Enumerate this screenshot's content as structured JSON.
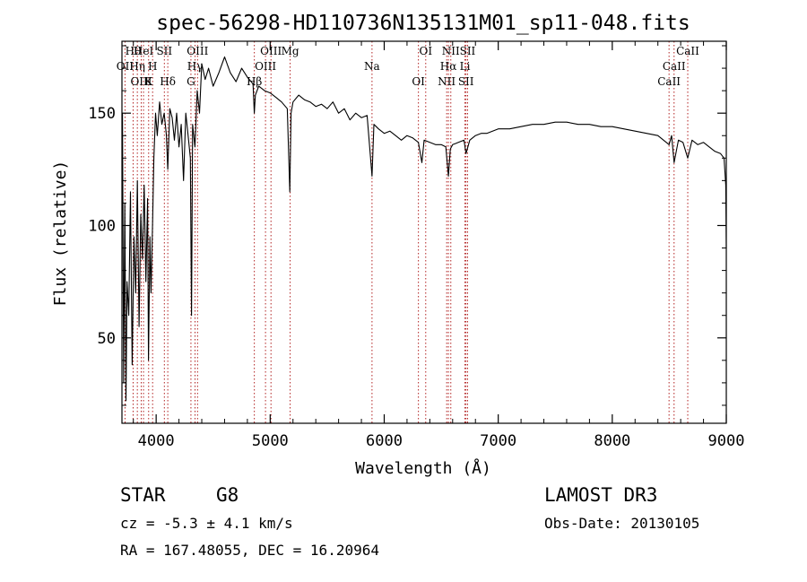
{
  "chart_data": {
    "type": "line",
    "title": "spec-56298-HD110736N135131M01_sp11-048.fits",
    "xlabel": "Wavelength (Å)",
    "ylabel": "Flux (relative)",
    "xlim": [
      3700,
      9000
    ],
    "ylim": [
      12,
      182
    ],
    "x_ticks": [
      4000,
      5000,
      6000,
      7000,
      8000,
      9000
    ],
    "y_ticks": [
      50,
      100,
      150
    ],
    "grid": false,
    "line_color": "#000000",
    "marker_color": "#b22222",
    "series": [
      {
        "x": [
          3705,
          3715,
          3725,
          3735,
          3745,
          3760,
          3775,
          3790,
          3805,
          3820,
          3835,
          3850,
          3865,
          3880,
          3895,
          3910,
          3925,
          3933,
          3945,
          3955,
          3968,
          3980,
          3995,
          4010,
          4030,
          4050,
          4070,
          4090,
          4102,
          4120,
          4140,
          4160,
          4180,
          4200,
          4220,
          4240,
          4260,
          4280,
          4300,
          4310,
          4320,
          4340,
          4360,
          4380,
          4400,
          4430,
          4460,
          4500,
          4550,
          4600,
          4650,
          4700,
          4750,
          4800,
          4850,
          4861,
          4870,
          4900,
          4950,
          5000,
          5050,
          5100,
          5150,
          5172,
          5183,
          5200,
          5250,
          5300,
          5350,
          5400,
          5450,
          5500,
          5550,
          5600,
          5650,
          5700,
          5750,
          5800,
          5850,
          5893,
          5910,
          5950,
          6000,
          6050,
          6100,
          6150,
          6200,
          6250,
          6300,
          6330,
          6350,
          6400,
          6450,
          6500,
          6540,
          6563,
          6580,
          6600,
          6650,
          6700,
          6717,
          6750,
          6800,
          6850,
          6900,
          6950,
          7000,
          7100,
          7200,
          7300,
          7400,
          7500,
          7600,
          7700,
          7800,
          7900,
          8000,
          8100,
          8200,
          8300,
          8400,
          8498,
          8520,
          8542,
          8580,
          8620,
          8662,
          8700,
          8750,
          8800,
          8850,
          8900,
          8950,
          8980,
          8995,
          9000
        ],
        "values": [
          150,
          30,
          110,
          22,
          75,
          60,
          115,
          38,
          95,
          70,
          120,
          55,
          105,
          85,
          118,
          75,
          112,
          40,
          95,
          70,
          100,
          130,
          150,
          140,
          155,
          145,
          150,
          140,
          125,
          152,
          148,
          138,
          150,
          135,
          145,
          120,
          150,
          140,
          130,
          60,
          145,
          135,
          160,
          150,
          172,
          165,
          170,
          162,
          168,
          175,
          168,
          164,
          170,
          166,
          163,
          150,
          158,
          162,
          160,
          159,
          157,
          155,
          152,
          115,
          150,
          155,
          158,
          156,
          155,
          153,
          154,
          152,
          155,
          150,
          152,
          147,
          150,
          148,
          149,
          122,
          145,
          143,
          141,
          142,
          140,
          138,
          140,
          139,
          137,
          128,
          138,
          137,
          136,
          136,
          135,
          122,
          134,
          136,
          137,
          138,
          132,
          138,
          140,
          141,
          141,
          142,
          143,
          143,
          144,
          145,
          145,
          146,
          146,
          145,
          145,
          144,
          144,
          143,
          142,
          141,
          140,
          136,
          140,
          128,
          138,
          137,
          130,
          138,
          136,
          137,
          135,
          133,
          132,
          130,
          118,
          90
        ]
      }
    ],
    "spectral_lines": [
      {
        "label": "Hθ",
        "wavelength": 3798
      },
      {
        "label": "OII",
        "wavelength": 3727
      },
      {
        "label": "OIII",
        "wavelength": 3869
      },
      {
        "label": "HeI",
        "wavelength": 3889
      },
      {
        "label": "Hη",
        "wavelength": 3835
      },
      {
        "label": "K",
        "wavelength": 3934
      },
      {
        "label": "SII",
        "wavelength": 4072
      },
      {
        "label": "H",
        "wavelength": 3969
      },
      {
        "label": "Hδ",
        "wavelength": 4102
      },
      {
        "label": "OIII",
        "wavelength": 4363
      },
      {
        "label": "Hγ",
        "wavelength": 4341
      },
      {
        "label": "G",
        "wavelength": 4305
      },
      {
        "label": "OIII",
        "wavelength": 5007
      },
      {
        "label": "OIII",
        "wavelength": 4959
      },
      {
        "label": "Hβ",
        "wavelength": 4861
      },
      {
        "label": "Mg",
        "wavelength": 5175
      },
      {
        "label": "Na",
        "wavelength": 5893
      },
      {
        "label": "OI",
        "wavelength": 6300
      },
      {
        "label": "OI",
        "wavelength": 6364
      },
      {
        "label": "Hα",
        "wavelength": 6563
      },
      {
        "label": "SII",
        "wavelength": 6717
      },
      {
        "label": "NII",
        "wavelength": 6584
      },
      {
        "label": "Li",
        "wavelength": 6708
      },
      {
        "label": "NII",
        "wavelength": 6548
      },
      {
        "label": "SII",
        "wavelength": 6731
      },
      {
        "label": "CaII",
        "wavelength": 8542
      },
      {
        "label": "CaII",
        "wavelength": 8498
      },
      {
        "label": "CaII",
        "wavelength": 8662
      }
    ]
  },
  "info": {
    "object_class": "STAR",
    "subclass": "G8",
    "cz": "cz = -5.3 ± 4.1 km/s",
    "coords": "RA = 167.48055, DEC =  16.20964",
    "survey": "LAMOST DR3",
    "obs_date": "Obs-Date: 20130105"
  }
}
